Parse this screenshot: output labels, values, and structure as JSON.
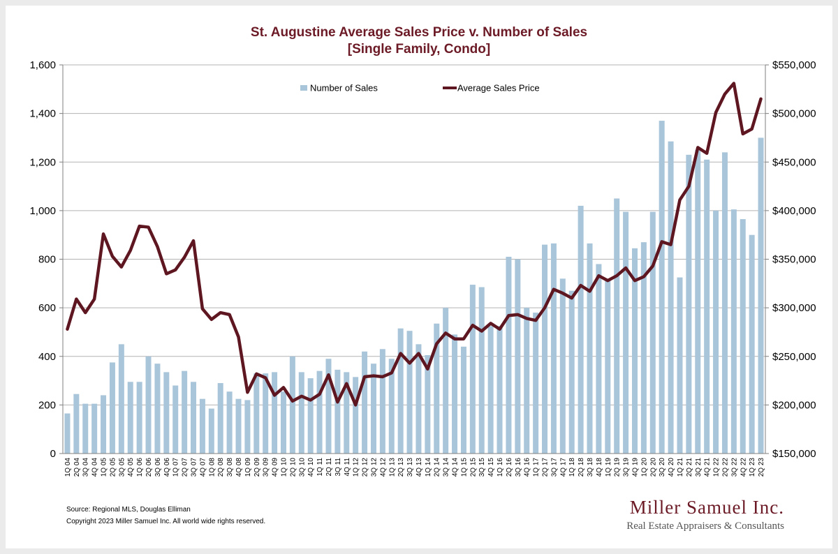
{
  "chart_data": {
    "type": "bar",
    "title_line1": "St. Augustine Average Sales Price v. Number of Sales",
    "title_line2": "[Single Family, Condo]",
    "categories": [
      "1Q 04",
      "2Q 04",
      "3Q 04",
      "4Q 04",
      "1Q 05",
      "2Q 05",
      "3Q 05",
      "4Q 05",
      "1Q 06",
      "2Q 06",
      "3Q 06",
      "4Q 06",
      "1Q 07",
      "2Q 07",
      "3Q 07",
      "4Q 07",
      "1Q 08",
      "2Q 08",
      "3Q 08",
      "4Q 08",
      "1Q 09",
      "2Q 09",
      "3Q 09",
      "4Q 09",
      "1Q 10",
      "2Q 10",
      "3Q 10",
      "4Q 10",
      "1Q 11",
      "2Q 11",
      "3Q 11",
      "4Q 11",
      "1Q 12",
      "2Q 12",
      "3Q 12",
      "4Q 12",
      "1Q 13",
      "2Q 13",
      "3Q 13",
      "4Q 13",
      "1Q 14",
      "2Q 14",
      "3Q 14",
      "4Q 14",
      "1Q 15",
      "2Q 15",
      "3Q 15",
      "4Q 15",
      "1Q 16",
      "2Q 16",
      "3Q 16",
      "4Q 16",
      "1Q 17",
      "2Q 17",
      "3Q 17",
      "4Q 17",
      "1Q 18",
      "2Q 18",
      "3Q 18",
      "4Q 18",
      "1Q 19",
      "2Q 19",
      "3Q 19",
      "4Q 19",
      "1Q 20",
      "2Q 20",
      "3Q 20",
      "4Q 20",
      "1Q 21",
      "2Q 21",
      "3Q 21",
      "4Q 21",
      "1Q 22",
      "2Q 22",
      "3Q 22",
      "4Q 22",
      "1Q 23",
      "2Q 23"
    ],
    "series": [
      {
        "name": "Number of Sales",
        "type": "bar",
        "axis": "left",
        "color": "#a9c5da",
        "values": [
          165,
          245,
          205,
          205,
          240,
          375,
          450,
          295,
          295,
          400,
          370,
          335,
          280,
          340,
          295,
          225,
          185,
          290,
          255,
          225,
          220,
          330,
          330,
          335,
          255,
          400,
          335,
          310,
          340,
          390,
          345,
          335,
          315,
          420,
          370,
          430,
          390,
          515,
          505,
          450,
          405,
          535,
          600,
          490,
          440,
          695,
          685,
          525,
          525,
          810,
          800,
          600,
          580,
          860,
          865,
          720,
          670,
          1020,
          865,
          780,
          720,
          1050,
          995,
          845,
          870,
          995,
          1370,
          1285,
          725,
          1230,
          1250,
          1210,
          1000,
          1240,
          1005,
          965,
          900,
          1300
        ]
      },
      {
        "name": "Average Sales Price",
        "type": "line",
        "axis": "right",
        "color": "#5e1620",
        "values": [
          278000,
          309000,
          295000,
          309000,
          376000,
          353000,
          342000,
          359000,
          384000,
          383000,
          363000,
          335000,
          339000,
          352000,
          369000,
          299000,
          288000,
          295000,
          293000,
          270000,
          213000,
          232000,
          228000,
          210000,
          218000,
          204000,
          209000,
          205000,
          211000,
          231000,
          203000,
          222000,
          200000,
          229000,
          230000,
          229000,
          233000,
          253000,
          243000,
          253000,
          237000,
          263000,
          274000,
          268000,
          268000,
          282000,
          276000,
          284000,
          278000,
          292000,
          293000,
          289000,
          287000,
          300000,
          319000,
          315000,
          310000,
          323000,
          317000,
          333000,
          328000,
          333000,
          341000,
          328000,
          332000,
          343000,
          368000,
          365000,
          411000,
          425000,
          465000,
          459000,
          501000,
          520000,
          531000,
          479000,
          484000,
          515000
        ]
      }
    ],
    "y_left": {
      "min": 0,
      "max": 1600,
      "step": 200,
      "ticks": [
        "0",
        "200",
        "400",
        "600",
        "800",
        "1,000",
        "1,200",
        "1,400",
        "1,600"
      ]
    },
    "y_right": {
      "min": 150000,
      "max": 550000,
      "step": 50000,
      "ticks": [
        "$150,000",
        "$200,000",
        "$250,000",
        "$300,000",
        "$350,000",
        "$400,000",
        "$450,000",
        "$500,000",
        "$550,000"
      ]
    },
    "grid": true,
    "legend_position": "top"
  },
  "footer": {
    "source": "Source: Regional MLS, Douglas Elliman",
    "copyright": "Copyright 2023 Miller Samuel Inc.  All world wide rights reserved."
  },
  "brand": {
    "name": "Miller Samuel Inc.",
    "tagline": "Real Estate Appraisers & Consultants"
  },
  "colors": {
    "bar": "#a9c5da",
    "line": "#5e1620",
    "title": "#6b1a26",
    "grid": "#b3b3b3"
  }
}
